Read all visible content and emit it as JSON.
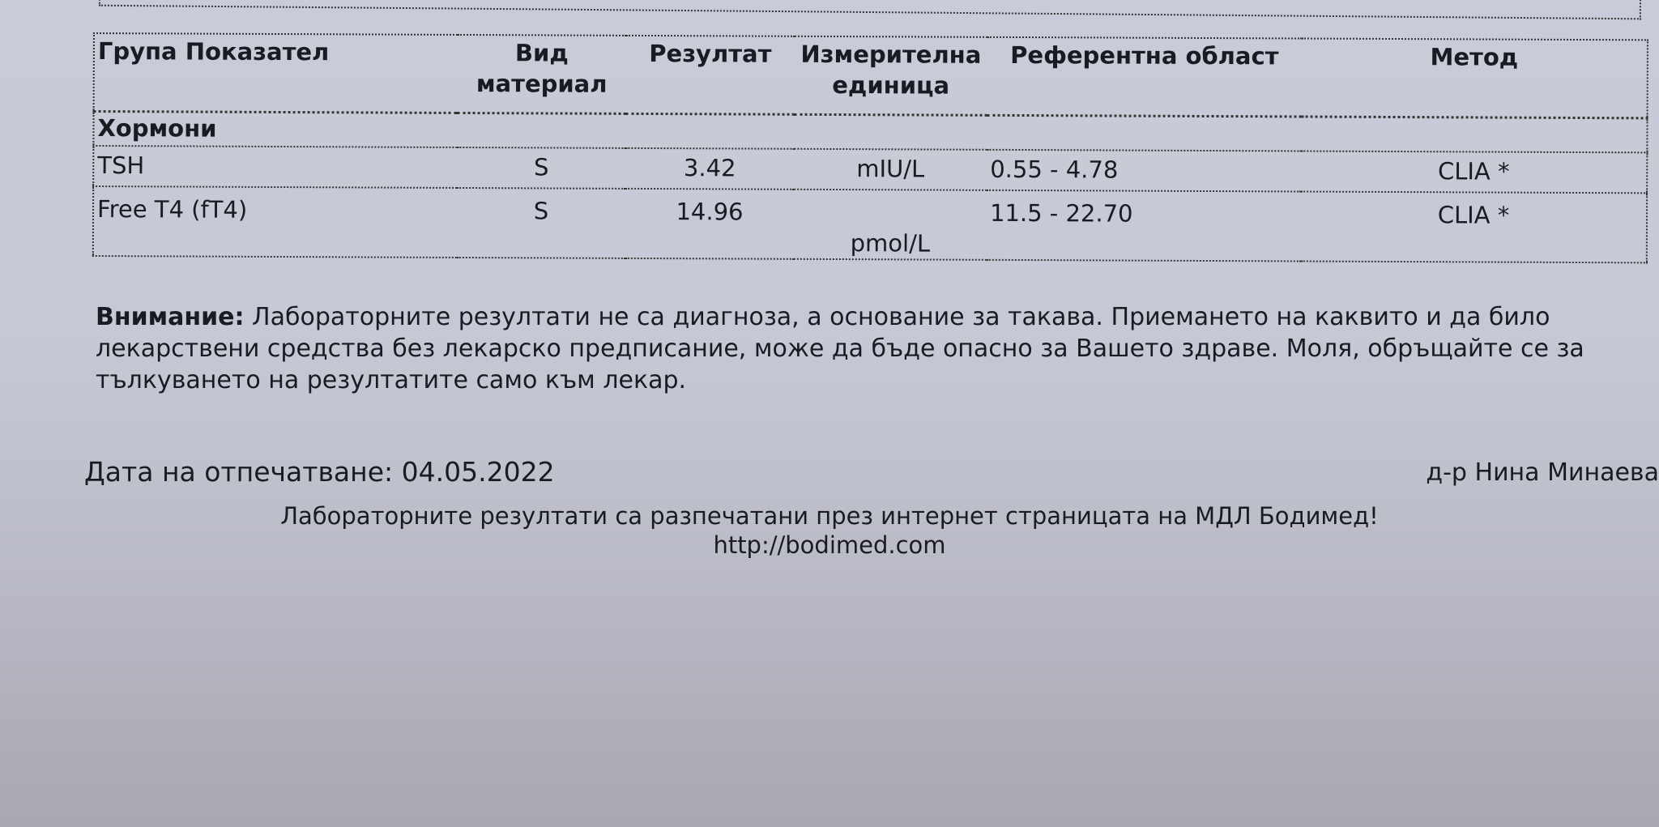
{
  "table": {
    "headers": [
      "Група Показател",
      "Вид материал",
      "Резултат",
      "Измерителна единица",
      "Референтна област",
      "Метод"
    ],
    "group": "Хормони",
    "rows": [
      {
        "name": "TSH",
        "material": "S",
        "result": "3.42",
        "unit": "mIU/L",
        "range": "0.55 - 4.78",
        "method": "CLIA *"
      },
      {
        "name": "Free T4 (fT4)",
        "material": "S",
        "result": "14.96",
        "unit": "pmol/L",
        "range": "11.5 - 22.70",
        "method": "CLIA *"
      }
    ]
  },
  "notice": {
    "label": "Внимание:",
    "text": " Лабораторните резултати не са диагноза, а основание за такава. Приемането на каквито и да било лекарствени средства без лекарско предписание, може да бъде опасно за Вашето здраве. Моля, обръщайте се за тълкуването на резултатите само към лекар."
  },
  "print_date": "Дата на отпечатване: 04.05.2022",
  "doctor": "д-р Нина Минаева",
  "footer": {
    "line1": "Лабораторните резултати са разпечатани през интернет страницата на МДЛ Бодимед!",
    "url": "http://bodimed.com"
  }
}
